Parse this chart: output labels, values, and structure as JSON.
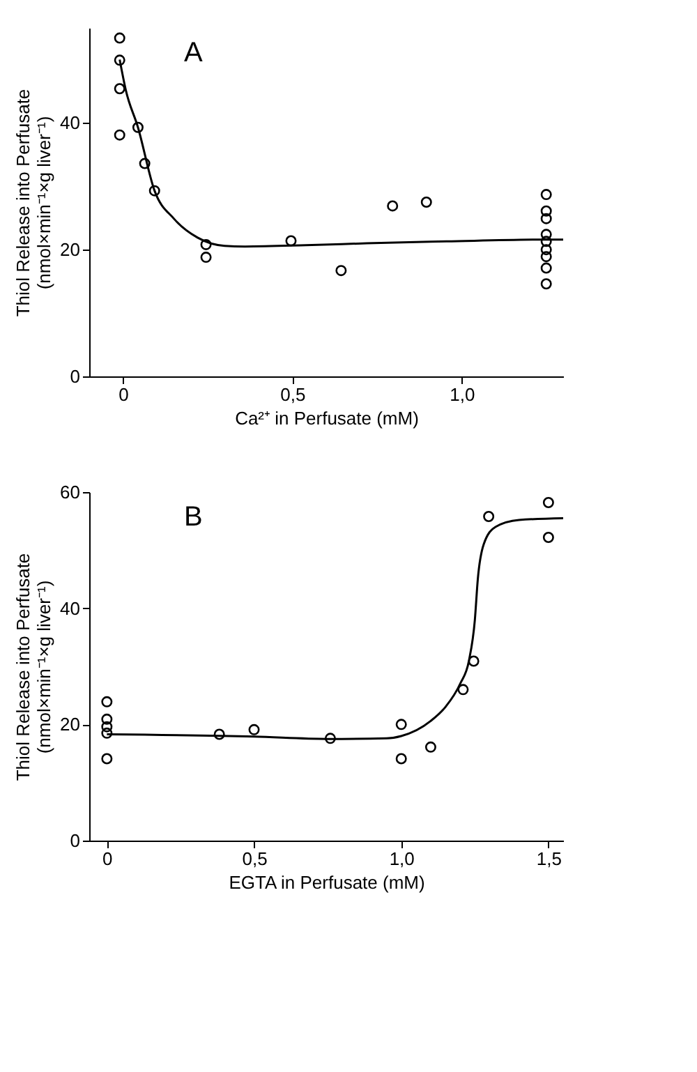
{
  "chart_data": [
    {
      "type": "scatter",
      "annotations": [
        "A"
      ],
      "xlabel": "Ca²⁺ in Perfusate (mM)",
      "ylabel": "Thiol Release into Perfusate\n(nmol×min⁻¹×g liver⁻¹)",
      "xlim": [
        -0.1,
        1.3
      ],
      "ylim": [
        0,
        55
      ],
      "xticks": [
        0,
        {
          "value": 0.5,
          "label": "0,5"
        },
        {
          "value": 1.0,
          "label": "1,0"
        }
      ],
      "yticks": [
        0,
        20,
        40
      ],
      "grid": false,
      "series": [
        {
          "color": "#000000",
          "marker": "circle",
          "x": [
            -0.01,
            -0.01,
            -0.01,
            -0.01,
            0.044,
            0.064,
            0.093,
            0.245,
            0.245,
            0.496,
            0.644,
            0.796,
            0.896,
            1.25,
            1.25,
            1.25,
            1.25,
            1.25,
            1.25,
            1.25,
            1.25,
            1.25
          ],
          "values": [
            53.4,
            49.9,
            45.4,
            38.1,
            39.3,
            33.6,
            29.3,
            20.8,
            18.8,
            21.4,
            16.7,
            26.9,
            27.5,
            28.7,
            26.1,
            24.9,
            22.4,
            21.3,
            20.0,
            18.9,
            17.1,
            14.6
          ]
        },
        {
          "type": "line",
          "color": "#000000",
          "marker": "none",
          "line_style": "solid",
          "x": [
            -0.01,
            0.008,
            0.044,
            0.093,
            0.15,
            0.22,
            0.3,
            0.36,
            0.54,
            0.72,
            0.955,
            1.25,
            1.3
          ],
          "values": [
            50,
            45.2,
            39.3,
            29.3,
            24.9,
            21.9,
            20.6,
            20.5,
            20.7,
            21.0,
            21.3,
            21.6,
            21.6
          ]
        }
      ]
    },
    {
      "type": "scatter",
      "annotations": [
        "B"
      ],
      "xlabel": "EGTA in Perfusate (mM)",
      "ylabel": "Thiol Release into Perfusate\n(nmol×min⁻¹×g liver⁻¹)",
      "xlim": [
        -0.06,
        1.55
      ],
      "ylim": [
        0,
        60
      ],
      "xticks": [
        0,
        {
          "value": 0.5,
          "label": "0,5"
        },
        {
          "value": 1.0,
          "label": "1,0"
        },
        {
          "value": 1.5,
          "label": "1,5"
        }
      ],
      "yticks": [
        0,
        20,
        40,
        60
      ],
      "grid": false,
      "series": [
        {
          "color": "#000000",
          "marker": "circle",
          "x": [
            0,
            0,
            0,
            0,
            0,
            0.382,
            0.5,
            0.759,
            1.0,
            1.0,
            1.1,
            1.21,
            1.246,
            1.297,
            1.5,
            1.5
          ],
          "values": [
            23.9,
            20.9,
            19.6,
            18.5,
            14.1,
            18.3,
            19.1,
            17.6,
            20.0,
            14.1,
            16.1,
            26.0,
            30.9,
            55.8,
            58.2,
            52.2
          ]
        },
        {
          "type": "line",
          "color": "#000000",
          "marker": "none",
          "line_style": "solid",
          "x": [
            0,
            0.5,
            0.75,
            0.95,
            1.0,
            1.1,
            1.15,
            1.2,
            1.23,
            1.25,
            1.26,
            1.28,
            1.32,
            1.4,
            1.55
          ],
          "values": [
            18.3,
            17.9,
            17.5,
            17.6,
            18.0,
            20.6,
            23,
            27,
            31,
            38,
            45,
            51,
            54,
            55.2,
            55.5
          ]
        }
      ]
    }
  ]
}
